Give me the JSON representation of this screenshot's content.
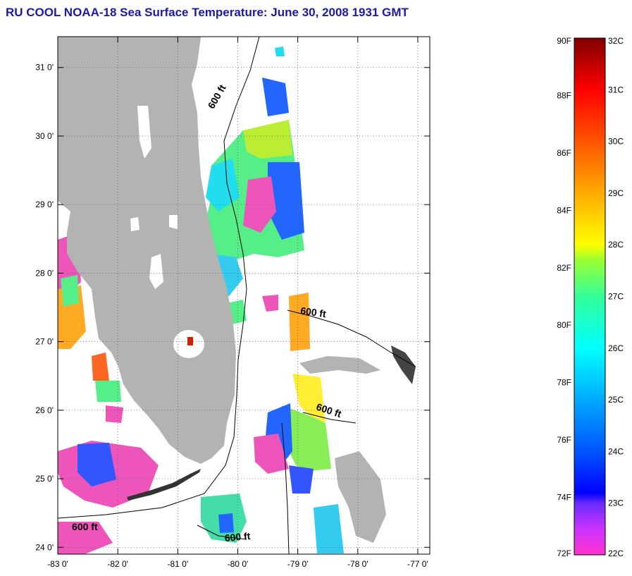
{
  "title": "RU COOL  NOAA-18  Sea Surface Temperature:  June 30, 2008 1931 GMT",
  "colors": {
    "land": "#b3b3b3",
    "background": "#ffffff",
    "title": "#1a1aa6",
    "grid": "#555555"
  },
  "map": {
    "lon_range": [
      -83,
      -76.8
    ],
    "lat_range": [
      23.9,
      31.45
    ],
    "x_ticks": [
      {
        "value": -83,
        "label": "-83 0'"
      },
      {
        "value": -82,
        "label": "-82 0'"
      },
      {
        "value": -81,
        "label": "-81 0'"
      },
      {
        "value": -80,
        "label": "-80 0'"
      },
      {
        "value": -79,
        "label": "-79 0'"
      },
      {
        "value": -78,
        "label": "-78 0'"
      },
      {
        "value": -77,
        "label": "-77 0'"
      }
    ],
    "y_ticks": [
      {
        "value": 31,
        "label": "31 0'"
      },
      {
        "value": 30,
        "label": "30 0'"
      },
      {
        "value": 29,
        "label": "29 0'"
      },
      {
        "value": 28,
        "label": "28 0'"
      },
      {
        "value": 27,
        "label": "27 0'"
      },
      {
        "value": 26,
        "label": "26 0'"
      },
      {
        "value": 25,
        "label": "25 0'"
      },
      {
        "value": 24,
        "label": "24 0'"
      }
    ],
    "contour_labels": [
      {
        "text": "600 ft",
        "lon": -80.3,
        "lat": 30.55,
        "angle": -60
      },
      {
        "text": "600 ft",
        "lon": -78.75,
        "lat": 27.38,
        "angle": 8
      },
      {
        "text": "600 ft",
        "lon": -78.5,
        "lat": 25.95,
        "angle": 18
      },
      {
        "text": "600 ft",
        "lon": -82.55,
        "lat": 24.25,
        "angle": 0
      },
      {
        "text": "600 ft",
        "lon": -80.0,
        "lat": 24.1,
        "angle": -5
      }
    ]
  },
  "colorbar": {
    "f_labels": [
      "90F",
      "88F",
      "86F",
      "84F",
      "82F",
      "80F",
      "78F",
      "76F",
      "74F",
      "72F"
    ],
    "c_labels": [
      "32C",
      "31C",
      "30C",
      "29C",
      "28C",
      "27C",
      "26C",
      "25C",
      "24C",
      "23C",
      "22C"
    ],
    "range_c": [
      22,
      32
    ],
    "stops": [
      {
        "c": 22,
        "color": "#ff33cc"
      },
      {
        "c": 22.5,
        "color": "#cc33ff"
      },
      {
        "c": 23,
        "color": "#6a2aff"
      },
      {
        "c": 23.2,
        "color": "#0000ff"
      },
      {
        "c": 24,
        "color": "#0055ff"
      },
      {
        "c": 25,
        "color": "#00aaff"
      },
      {
        "c": 26,
        "color": "#00ffff"
      },
      {
        "c": 27,
        "color": "#33ff99"
      },
      {
        "c": 27.7,
        "color": "#99ff33"
      },
      {
        "c": 28,
        "color": "#ffff00"
      },
      {
        "c": 29,
        "color": "#ffaa00"
      },
      {
        "c": 30,
        "color": "#ff5500"
      },
      {
        "c": 31,
        "color": "#ff0000"
      },
      {
        "c": 32,
        "color": "#800000"
      }
    ]
  }
}
